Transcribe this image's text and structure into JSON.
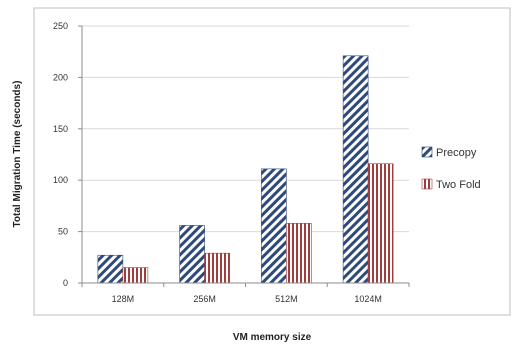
{
  "chart_data": {
    "type": "bar",
    "categories": [
      "128M",
      "256M",
      "512M",
      "1024M"
    ],
    "series": [
      {
        "name": "Precopy",
        "values": [
          27,
          56,
          111,
          221
        ],
        "color": "#2e4a7a",
        "pattern": "diagonal-stripes"
      },
      {
        "name": "Two Fold",
        "values": [
          15,
          29,
          58,
          116
        ],
        "color": "#a03c3c",
        "pattern": "vertical-stripes"
      }
    ],
    "title": "",
    "xlabel": "VM memory size",
    "ylabel": "Total Migration Time (seconds)",
    "ylim": [
      0,
      250
    ],
    "yticks": [
      0,
      50,
      100,
      150,
      200,
      250
    ],
    "grid": true,
    "legend_position": "right"
  }
}
